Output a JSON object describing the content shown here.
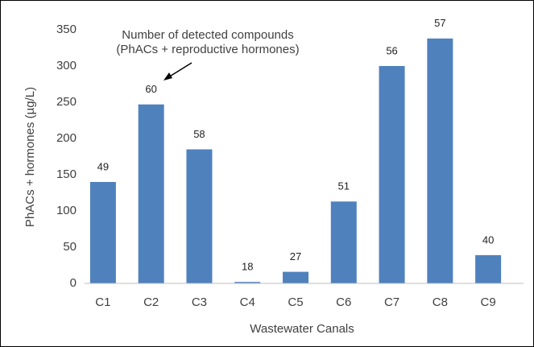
{
  "chart_data": {
    "type": "bar",
    "categories": [
      "C1",
      "C2",
      "C3",
      "C4",
      "C5",
      "C6",
      "C7",
      "C8",
      "C9"
    ],
    "values": [
      140,
      247,
      185,
      2,
      16,
      113,
      300,
      338,
      39
    ],
    "bar_labels": [
      49,
      60,
      58,
      18,
      27,
      51,
      56,
      57,
      40
    ],
    "color": "#4f81bd",
    "ylim": [
      0,
      350
    ],
    "yticks": [
      0,
      50,
      100,
      150,
      200,
      250,
      300,
      350
    ],
    "x_label": "Wastewater Canals",
    "y_label": "PhACs + hormones (µg/L)",
    "annotation": [
      "Number of detected compounds",
      "(PhACs + reproductive hormones)"
    ],
    "grid": false
  }
}
